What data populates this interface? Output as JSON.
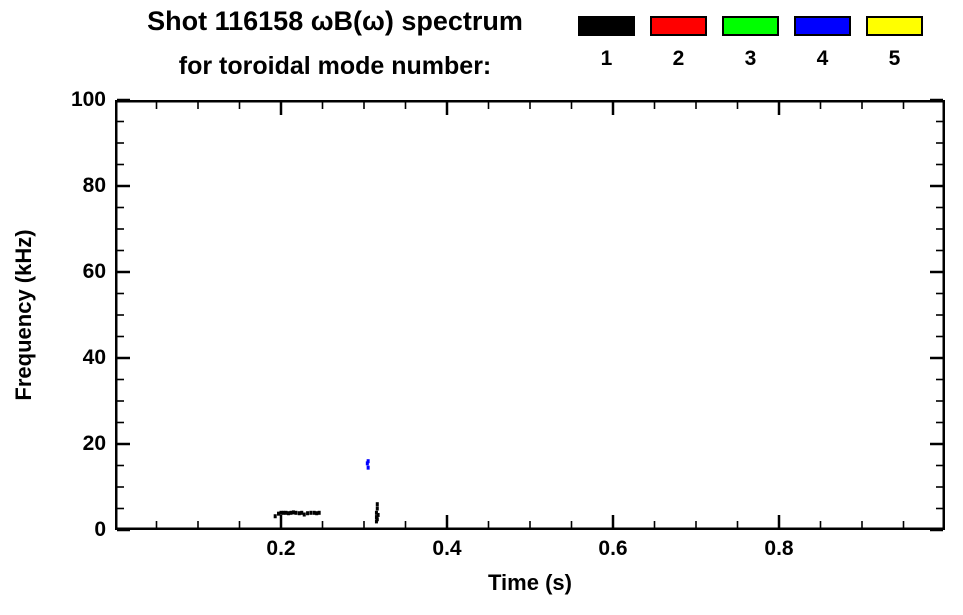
{
  "figure": {
    "background": "#ffffff",
    "axis_color": "#000000"
  },
  "chart_data": {
    "type": "scatter",
    "title": "Shot 116158 ωB(ω) spectrum",
    "subtitle": "for toroidal mode number:",
    "xlabel": "Time (s)",
    "ylabel": "Frequency (kHz)",
    "xlim": [
      0,
      1.0
    ],
    "ylim": [
      0,
      100
    ],
    "grid": false,
    "legend_position": "top-right",
    "x_major_ticks": [
      {
        "v": 0.2,
        "label": "0.2"
      },
      {
        "v": 0.4,
        "label": "0.4"
      },
      {
        "v": 0.6,
        "label": "0.6"
      },
      {
        "v": 0.8,
        "label": "0.8"
      }
    ],
    "y_major_ticks": [
      {
        "v": 0,
        "label": "0"
      },
      {
        "v": 20,
        "label": "20"
      },
      {
        "v": 40,
        "label": "40"
      },
      {
        "v": 60,
        "label": "60"
      },
      {
        "v": 80,
        "label": "80"
      },
      {
        "v": 100,
        "label": "100"
      }
    ],
    "x_minor_step": 0.05,
    "y_minor_step": 5,
    "legend": [
      {
        "label": "1",
        "color": "#000000"
      },
      {
        "label": "2",
        "color": "#ff0000"
      },
      {
        "label": "3",
        "color": "#00ff00"
      },
      {
        "label": "4",
        "color": "#0000ff"
      },
      {
        "label": "5",
        "color": "#ffff00"
      }
    ],
    "series": [
      {
        "name": "mode 1",
        "color": "#000000",
        "points": [
          [
            0.193,
            3.2
          ],
          [
            0.197,
            3.8
          ],
          [
            0.2,
            4.0
          ],
          [
            0.203,
            4.0
          ],
          [
            0.206,
            4.0
          ],
          [
            0.209,
            3.9
          ],
          [
            0.212,
            4.0
          ],
          [
            0.215,
            4.1
          ],
          [
            0.218,
            4.0
          ],
          [
            0.222,
            3.9
          ],
          [
            0.225,
            4.0
          ],
          [
            0.228,
            3.6
          ],
          [
            0.232,
            3.9
          ],
          [
            0.236,
            4.0
          ],
          [
            0.24,
            4.0
          ],
          [
            0.243,
            3.9
          ],
          [
            0.246,
            4.0
          ],
          [
            0.315,
            2.0
          ],
          [
            0.315,
            3.0
          ],
          [
            0.315,
            4.0
          ],
          [
            0.316,
            5.0
          ],
          [
            0.316,
            2.5
          ],
          [
            0.317,
            3.5
          ],
          [
            0.316,
            6.0
          ]
        ]
      },
      {
        "name": "mode 4",
        "color": "#0000ff",
        "points": [
          [
            0.304,
            15.5
          ],
          [
            0.305,
            14.5
          ],
          [
            0.305,
            16.0
          ]
        ]
      }
    ]
  }
}
